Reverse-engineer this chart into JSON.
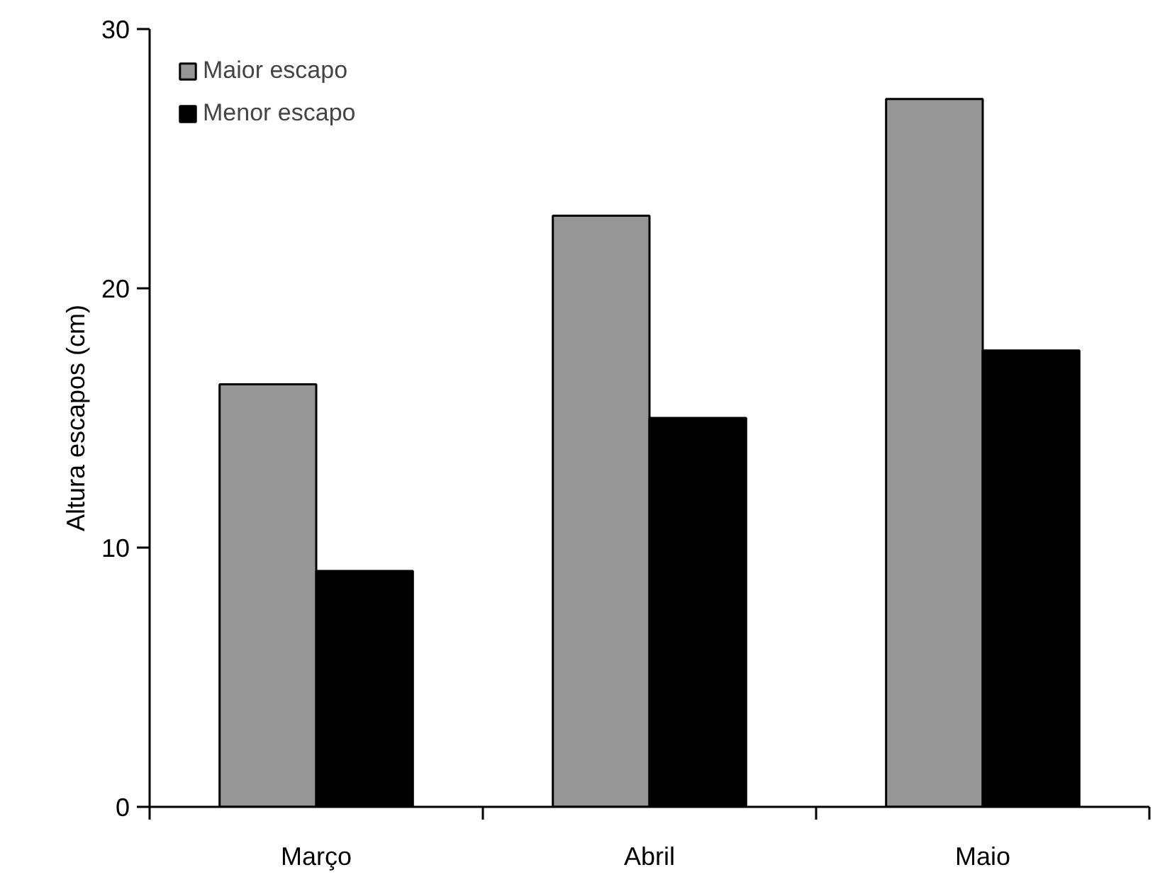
{
  "chart_data": {
    "type": "bar",
    "ylabel": "Altura escapos (cm)",
    "categories": [
      "Março",
      "Abril",
      "Maio"
    ],
    "series": [
      {
        "name": "Maior escapo",
        "color": "#969696",
        "values": [
          16.3,
          22.8,
          27.3
        ]
      },
      {
        "name": "Menor escapo",
        "color": "#000000",
        "values": [
          9.1,
          15.0,
          17.6
        ]
      }
    ],
    "ylim": [
      0,
      30
    ],
    "yticks": [
      0,
      10,
      20,
      30
    ],
    "grid": false,
    "legend": "top left"
  }
}
